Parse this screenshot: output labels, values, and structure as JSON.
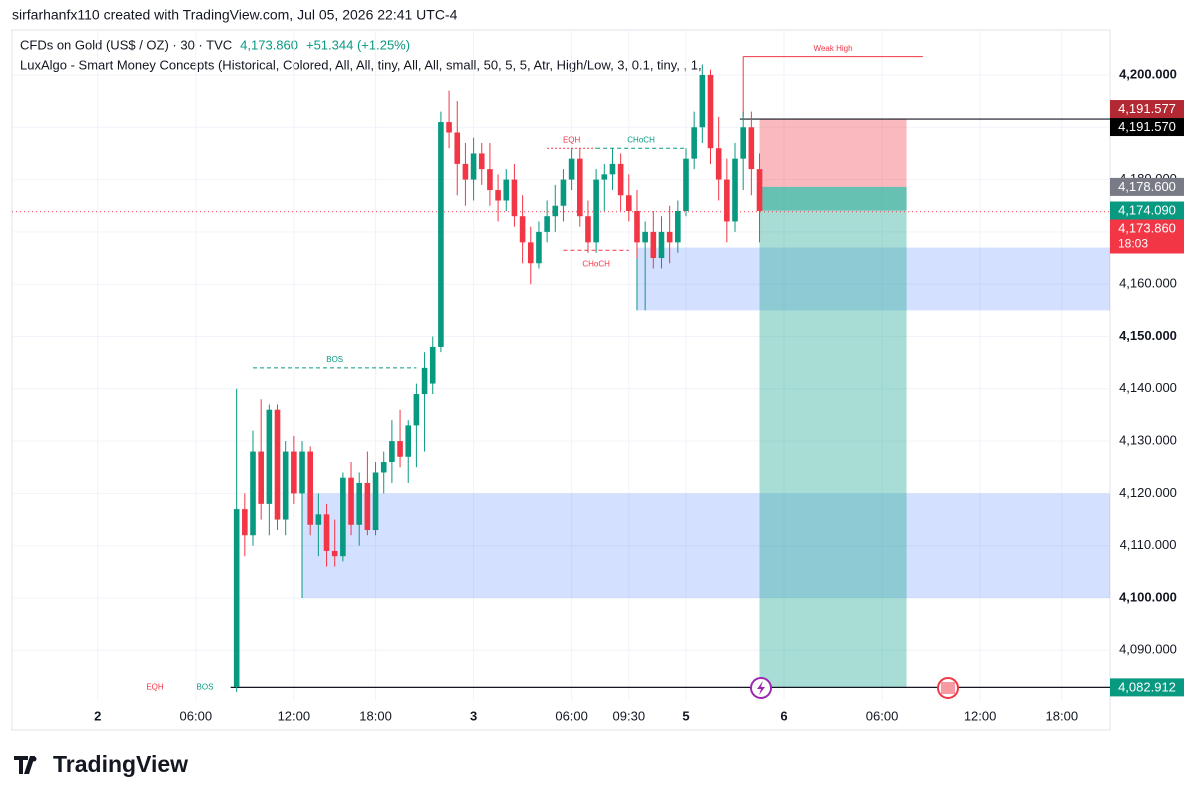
{
  "header": {
    "credit": "sirfarhanfx110 created with TradingView.com, Jul 05, 2026 22:41 UTC-4",
    "symbol": "CFDs on Gold (US$ / OZ) · 30 · TVC",
    "price": "4,173.860",
    "change": "+51.344 (+1.25%)",
    "indicator": "LuxAlgo - Smart Money Concepts (Historical, Colored, All, All, tiny, All, All, small, 50, 5, 5, Atr, High/Low, 3, 0.1, tiny, , 1,"
  },
  "footer": "TradingView",
  "chart_data": {
    "type": "candlestick",
    "up_color": "#089981",
    "down_color": "#f23645",
    "candles": [
      [
        4083,
        4140,
        4082,
        4117
      ],
      [
        4117,
        4120,
        4108,
        4112
      ],
      [
        4112,
        4132,
        4110,
        4128
      ],
      [
        4128,
        4138,
        4115,
        4118
      ],
      [
        4118,
        4137,
        4112,
        4136
      ],
      [
        4136,
        4137,
        4113,
        4115
      ],
      [
        4115,
        4130,
        4112,
        4128
      ],
      [
        4128,
        4131,
        4118,
        4120
      ],
      [
        4120,
        4130,
        4117,
        4128
      ],
      [
        4128,
        4129,
        4112,
        4114
      ],
      [
        4114,
        4120,
        4108,
        4116
      ],
      [
        4116,
        4118,
        4106,
        4109
      ],
      [
        4109,
        4115,
        4106,
        4108
      ],
      [
        4108,
        4124,
        4107,
        4123
      ],
      [
        4123,
        4126,
        4112,
        4114
      ],
      [
        4114,
        4124,
        4110,
        4122
      ],
      [
        4122,
        4128,
        4112,
        4113
      ],
      [
        4113,
        4126,
        4112,
        4124
      ],
      [
        4124,
        4128,
        4120,
        4126
      ],
      [
        4126,
        4134,
        4122,
        4130
      ],
      [
        4130,
        4136,
        4125,
        4127
      ],
      [
        4127,
        4134,
        4122,
        4133
      ],
      [
        4133,
        4141,
        4125,
        4139
      ],
      [
        4139,
        4147,
        4128,
        4144
      ],
      [
        4141,
        4150,
        4139,
        4148
      ],
      [
        4148,
        4193,
        4147,
        4191
      ],
      [
        4191,
        4197,
        4186,
        4189
      ],
      [
        4189,
        4195,
        4177,
        4183
      ],
      [
        4183,
        4187,
        4175,
        4180
      ],
      [
        4180,
        4188,
        4176,
        4185
      ],
      [
        4185,
        4187,
        4179,
        4182
      ],
      [
        4182,
        4187,
        4175,
        4178
      ],
      [
        4178,
        4181,
        4172,
        4176
      ],
      [
        4176,
        4182,
        4174,
        4180
      ],
      [
        4180,
        4183,
        4171,
        4173
      ],
      [
        4173,
        4177,
        4164,
        4168
      ],
      [
        4168,
        4171,
        4160,
        4164
      ],
      [
        4164,
        4172,
        4163,
        4170
      ],
      [
        4170,
        4176,
        4168,
        4173
      ],
      [
        4173,
        4179,
        4170,
        4175
      ],
      [
        4175,
        4182,
        4172,
        4180
      ],
      [
        4180,
        4186,
        4178,
        4184
      ],
      [
        4184,
        4186,
        4171,
        4173
      ],
      [
        4173,
        4176,
        4166,
        4168
      ],
      [
        4168,
        4182,
        4166,
        4180
      ],
      [
        4180,
        4183,
        4174,
        4181
      ],
      [
        4181,
        4186,
        4178,
        4183
      ],
      [
        4183,
        4185,
        4174,
        4177
      ],
      [
        4177,
        4181,
        4172,
        4174
      ],
      [
        4174,
        4178,
        4165,
        4168
      ],
      [
        4168,
        4172,
        4155,
        4170
      ],
      [
        4170,
        4174,
        4163,
        4165
      ],
      [
        4165,
        4173,
        4163,
        4170
      ],
      [
        4170,
        4175,
        4164,
        4168
      ],
      [
        4168,
        4176,
        4166,
        4174
      ],
      [
        4174,
        4186,
        4173,
        4184
      ],
      [
        4184,
        4193,
        4182,
        4190
      ],
      [
        4190,
        4202,
        4187,
        4200
      ],
      [
        4200,
        4201,
        4183,
        4186
      ],
      [
        4186,
        4192,
        4176,
        4180
      ],
      [
        4180,
        4184,
        4168,
        4172
      ],
      [
        4172,
        4187,
        4170,
        4184
      ],
      [
        4184,
        4193,
        4178,
        4190
      ],
      [
        4190,
        4193,
        4177,
        4182
      ],
      [
        4182,
        4185,
        4168,
        4174
      ]
    ],
    "xlim": [
      -27.5,
      106.9
    ],
    "xticks": [
      {
        "value": -17,
        "label": "2"
      },
      {
        "value": -5,
        "label": "06:00"
      },
      {
        "value": 7,
        "label": "12:00"
      },
      {
        "value": 17,
        "label": "18:00"
      },
      {
        "value": 29,
        "label": "3"
      },
      {
        "value": 41,
        "label": "06:00"
      },
      {
        "value": 48,
        "label": "09:30"
      },
      {
        "value": 55,
        "label": "5"
      },
      {
        "value": 67,
        "label": "6"
      },
      {
        "value": 79,
        "label": "06:00"
      },
      {
        "value": 91,
        "label": "12:00"
      },
      {
        "value": 101,
        "label": "18:00"
      }
    ],
    "ylim": [
      4080.5,
      4208.6
    ],
    "yticks": [
      {
        "value": 4090,
        "label": "4,090.000"
      },
      {
        "value": 4100,
        "label": "4,100.000"
      },
      {
        "value": 4110,
        "label": "4,110.000"
      },
      {
        "value": 4120,
        "label": "4,120.000"
      },
      {
        "value": 4130,
        "label": "4,130.000"
      },
      {
        "value": 4140,
        "label": "4,140.000"
      },
      {
        "value": 4150,
        "label": "4,150.000"
      },
      {
        "value": 4160,
        "label": "4,160.000"
      },
      {
        "value": 4170,
        "label": "4,170.000"
      },
      {
        "value": 4180,
        "label": "4,180.000"
      },
      {
        "value": 4190,
        "label": "4,190.000"
      },
      {
        "value": 4200,
        "label": "4,200.000"
      }
    ],
    "grid": true,
    "price_labels": [
      {
        "value": 4191.577,
        "label": "4,191.577",
        "color": "#b22833"
      },
      {
        "value": 4191.57,
        "label": "4,191.570",
        "color": "#000000"
      },
      {
        "value": 4178.6,
        "label": "4,178.600",
        "color": "#787b86"
      },
      {
        "value": 4174.09,
        "label": "4,174.090",
        "color": "#089981"
      },
      {
        "value": 4173.86,
        "label": "4,173.860",
        "color": "#f23645",
        "sub": "18:03"
      },
      {
        "value": 4082.912,
        "label": "4,082.912",
        "color": "#089981"
      }
    ],
    "zones": [
      {
        "low": 4155,
        "high": 4167,
        "from": 49,
        "color": "#2962ff"
      },
      {
        "low": 4100,
        "high": 4120,
        "from": 8,
        "color": "#2962ff"
      }
    ],
    "position": {
      "stop": 4191.577,
      "entry": 4178.6,
      "current": 4174.09,
      "target": 4082.912,
      "from": 64,
      "to": 82
    },
    "structures": [
      {
        "label": "BOS",
        "value": 4144,
        "from": 2,
        "to": 22,
        "color": "#089981",
        "dash": "4 3"
      },
      {
        "label": "EQH",
        "value": 4186,
        "from": 38,
        "to": 44,
        "color": "#f23645",
        "dash": "2 2"
      },
      {
        "label": "CHoCH",
        "value": 4186,
        "from": 44,
        "to": 55,
        "color": "#089981",
        "dash": "4 3"
      },
      {
        "label": "CHoCH",
        "value": 4166.5,
        "from": 40,
        "to": 48,
        "color": "#f23645",
        "dash": "4 3",
        "below": true
      },
      {
        "label": "Weak High",
        "value": 4203.5,
        "from": 62,
        "to": 84,
        "color": "#f23645"
      }
    ],
    "bottom_labels": [
      {
        "label": "EQH",
        "color": "#f23645"
      },
      {
        "label": "BOS",
        "color": "#089981"
      }
    ]
  }
}
